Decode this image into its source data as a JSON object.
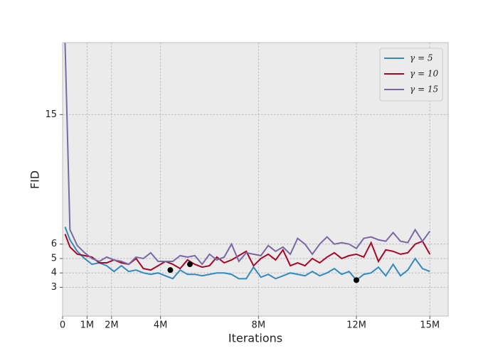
{
  "chart_data": {
    "type": "line",
    "xlabel": "Iterations",
    "ylabel": "FID",
    "x": [
      100000,
      300000,
      600000,
      900000,
      1200000,
      1500000,
      1800000,
      2100000,
      2400000,
      2700000,
      3000000,
      3300000,
      3600000,
      3900000,
      4200000,
      4500000,
      4800000,
      5100000,
      5400000,
      5700000,
      6000000,
      6300000,
      6600000,
      6900000,
      7200000,
      7500000,
      7800000,
      8100000,
      8400000,
      8700000,
      9000000,
      9300000,
      9600000,
      9900000,
      10200000,
      10500000,
      10800000,
      11100000,
      11400000,
      11700000,
      12000000,
      12300000,
      12600000,
      12900000,
      13200000,
      13500000,
      13800000,
      14100000,
      14400000,
      14700000,
      15000000
    ],
    "series": [
      {
        "name": "γ = 5",
        "color": "#348ABD",
        "values": [
          7.2,
          6.3,
          5.5,
          5.0,
          4.6,
          4.7,
          4.5,
          4.1,
          4.5,
          4.1,
          4.2,
          4.0,
          3.9,
          4.0,
          3.8,
          3.6,
          4.2,
          3.9,
          3.9,
          3.8,
          3.9,
          4.0,
          4.0,
          3.9,
          3.6,
          3.6,
          4.4,
          3.7,
          3.9,
          3.6,
          3.8,
          4.0,
          3.9,
          3.8,
          4.1,
          3.8,
          4.0,
          4.3,
          3.9,
          4.1,
          3.5,
          3.9,
          4.0,
          4.4,
          3.8,
          4.6,
          3.8,
          4.2,
          5.0,
          4.3,
          4.1
        ]
      },
      {
        "name": "γ = 10",
        "color": "#A60628",
        "values": [
          6.7,
          5.8,
          5.3,
          5.2,
          5.1,
          4.7,
          4.7,
          4.9,
          4.7,
          4.6,
          5.0,
          4.3,
          4.2,
          4.5,
          4.8,
          4.6,
          4.3,
          4.9,
          4.6,
          4.4,
          4.5,
          5.1,
          4.7,
          4.9,
          5.2,
          5.5,
          4.5,
          5.0,
          5.3,
          4.9,
          5.6,
          4.5,
          4.7,
          4.5,
          5.0,
          4.7,
          5.1,
          5.4,
          5.0,
          5.2,
          5.3,
          5.1,
          6.1,
          4.8,
          5.6,
          5.5,
          5.3,
          5.4,
          6.0,
          6.2,
          5.3
        ]
      },
      {
        "name": "γ = 15",
        "color": "#7A68A6",
        "values": [
          20,
          7.0,
          5.9,
          5.4,
          5.0,
          4.8,
          5.1,
          4.9,
          4.8,
          4.6,
          5.1,
          5.0,
          5.4,
          4.8,
          4.8,
          4.8,
          5.2,
          5.1,
          5.2,
          4.6,
          5.3,
          4.9,
          5.1,
          6.0,
          4.8,
          5.4,
          5.3,
          5.2,
          5.9,
          5.5,
          5.8,
          5.3,
          6.4,
          6.0,
          5.3,
          6.0,
          6.5,
          6.0,
          6.1,
          6.0,
          5.7,
          6.4,
          6.5,
          6.3,
          6.2,
          6.8,
          6.2,
          6.1,
          7.0,
          6.2,
          6.9
        ]
      }
    ],
    "points": {
      "x": [
        4400000,
        5200000,
        12000000
      ],
      "y": [
        4.2,
        4.6,
        3.5
      ],
      "color": "#000000"
    },
    "xlim": [
      0,
      15750000
    ],
    "xticks": [
      0,
      {
        "value": 1000000,
        "label": "1M"
      },
      {
        "value": 2000000,
        "label": "2M"
      },
      {
        "value": 4000000,
        "label": "4M"
      },
      {
        "value": 8000000,
        "label": "8M"
      },
      {
        "value": 12000000,
        "label": "12M"
      },
      {
        "value": 15000000,
        "label": "15M"
      }
    ],
    "ylim": [
      1,
      20
    ],
    "yticks": [
      3,
      4,
      5,
      6,
      15
    ],
    "grid": true,
    "legend": "upper right",
    "background": "#EBEBEB"
  }
}
